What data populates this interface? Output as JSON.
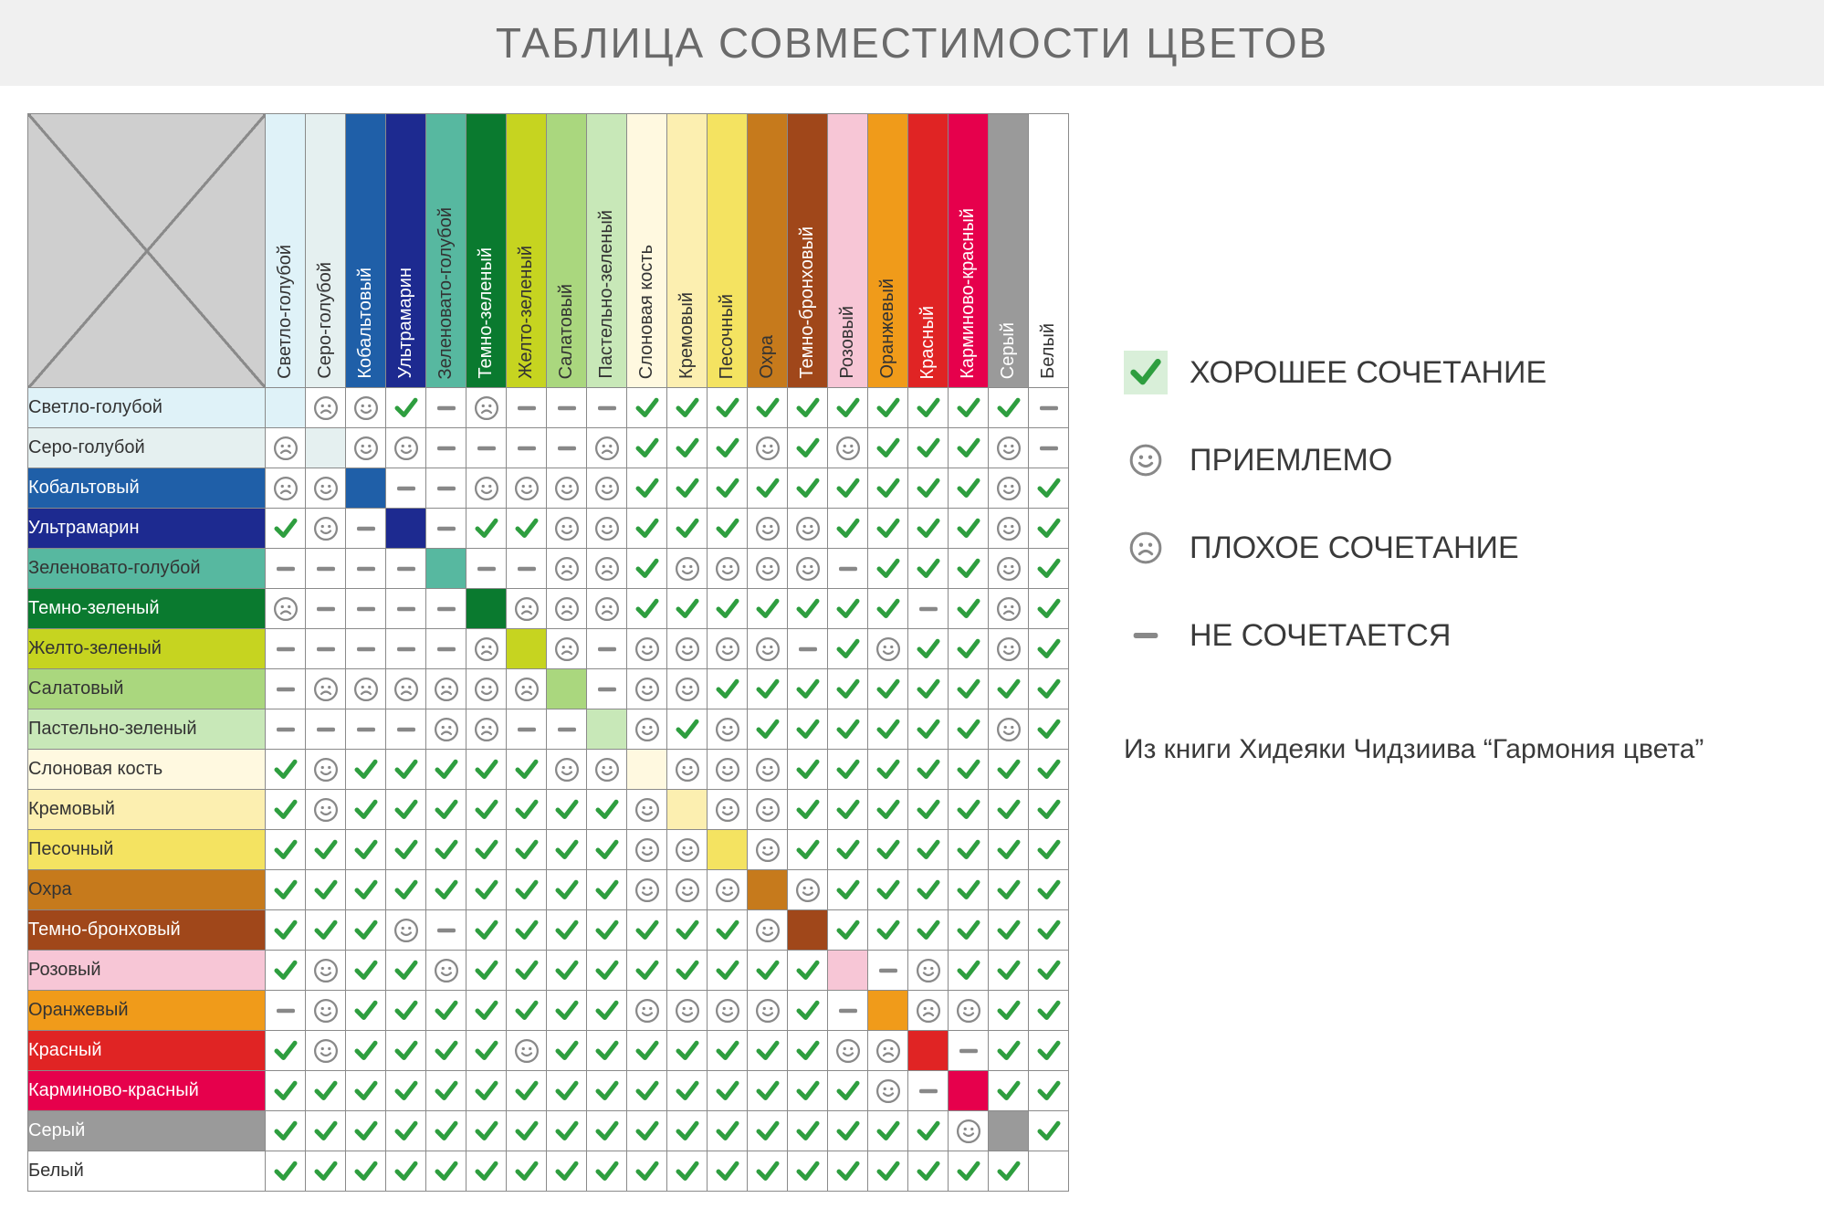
{
  "title": "ТАБЛИЦА СОВМЕСТИМОСТИ ЦВЕТОВ",
  "symbols": {
    "check_color": "#2e9e3f",
    "face_stroke": "#888888",
    "dash_color": "#888888"
  },
  "legend": {
    "items": [
      {
        "sym": "c",
        "label": "ХОРОШЕЕ СОЧЕТАНИЕ"
      },
      {
        "sym": "s",
        "label": "ПРИЕМЛЕМО"
      },
      {
        "sym": "f",
        "label": "ПЛОХОЕ СОЧЕТАНИЕ"
      },
      {
        "sym": "d",
        "label": "НЕ СОЧЕТАЕТСЯ"
      }
    ],
    "note": "Из книги Хидеяки Чидзиива “Гармония цвета”"
  },
  "colors": [
    {
      "name": "Светло-голубой",
      "bg": "#dff2f8",
      "fg": "#333333"
    },
    {
      "name": "Серо-голубой",
      "bg": "#e5f0f0",
      "fg": "#333333"
    },
    {
      "name": "Кобальтовый",
      "bg": "#1f5fa8",
      "fg": "#ffffff"
    },
    {
      "name": "Ультрамарин",
      "bg": "#1d2a90",
      "fg": "#ffffff"
    },
    {
      "name": "Зеленовато-голубой",
      "bg": "#57b8a0",
      "fg": "#333333"
    },
    {
      "name": "Темно-зеленый",
      "bg": "#0a7a2f",
      "fg": "#ffffff"
    },
    {
      "name": "Желто-зеленый",
      "bg": "#c6d420",
      "fg": "#333333"
    },
    {
      "name": "Салатовый",
      "bg": "#aad77e",
      "fg": "#333333"
    },
    {
      "name": "Пастельно-зеленый",
      "bg": "#c8e8b8",
      "fg": "#333333"
    },
    {
      "name": "Слоновая кость",
      "bg": "#fff9e0",
      "fg": "#333333"
    },
    {
      "name": "Кремовый",
      "bg": "#fcefb0",
      "fg": "#333333"
    },
    {
      "name": "Песочный",
      "bg": "#f4e361",
      "fg": "#333333"
    },
    {
      "name": "Охра",
      "bg": "#c67a1c",
      "fg": "#333333"
    },
    {
      "name": "Темно-бронховый",
      "bg": "#a0471a",
      "fg": "#ffffff"
    },
    {
      "name": "Розовый",
      "bg": "#f7c6d6",
      "fg": "#333333"
    },
    {
      "name": "Оранжевый",
      "bg": "#f09b1a",
      "fg": "#333333"
    },
    {
      "name": "Красный",
      "bg": "#e02424",
      "fg": "#ffffff"
    },
    {
      "name": "Карминово-красный",
      "bg": "#e6004c",
      "fg": "#ffffff"
    },
    {
      "name": "Серый",
      "bg": "#9a9a9a",
      "fg": "#ffffff"
    },
    {
      "name": "Белый",
      "bg": "#ffffff",
      "fg": "#333333"
    }
  ],
  "matrix": [
    [
      ".",
      "f",
      "s",
      "c",
      "d",
      "f",
      "d",
      "d",
      "d",
      "c",
      "c",
      "c",
      "c",
      "c",
      "c",
      "c",
      "c",
      "c",
      "c",
      "d"
    ],
    [
      "f",
      ".",
      "s",
      "s",
      "d",
      "d",
      "d",
      "d",
      "f",
      "c",
      "c",
      "c",
      "s",
      "c",
      "s",
      "c",
      "c",
      "c",
      "s",
      "d"
    ],
    [
      "f",
      "s",
      ".",
      "d",
      "d",
      "s",
      "s",
      "s",
      "s",
      "c",
      "c",
      "c",
      "c",
      "c",
      "c",
      "c",
      "c",
      "c",
      "s",
      "c"
    ],
    [
      "c",
      "s",
      "d",
      ".",
      "d",
      "c",
      "c",
      "s",
      "s",
      "c",
      "c",
      "c",
      "s",
      "s",
      "c",
      "c",
      "c",
      "c",
      "s",
      "c"
    ],
    [
      "d",
      "d",
      "d",
      "d",
      ".",
      "d",
      "d",
      "f",
      "f",
      "c",
      "s",
      "s",
      "s",
      "s",
      "d",
      "c",
      "c",
      "c",
      "s",
      "c"
    ],
    [
      "f",
      "d",
      "d",
      "d",
      "d",
      ".",
      "f",
      "f",
      "f",
      "c",
      "c",
      "c",
      "c",
      "c",
      "c",
      "c",
      "d",
      "c",
      "f",
      "c"
    ],
    [
      "d",
      "d",
      "d",
      "d",
      "d",
      "f",
      ".",
      "f",
      "d",
      "s",
      "s",
      "s",
      "s",
      "d",
      "c",
      "s",
      "c",
      "c",
      "s",
      "c"
    ],
    [
      "d",
      "f",
      "f",
      "f",
      "f",
      "s",
      "f",
      ".",
      "d",
      "s",
      "s",
      "c",
      "c",
      "c",
      "c",
      "c",
      "c",
      "c",
      "c",
      "c"
    ],
    [
      "d",
      "d",
      "d",
      "d",
      "f",
      "f",
      "d",
      "d",
      ".",
      "s",
      "c",
      "s",
      "c",
      "c",
      "c",
      "c",
      "c",
      "c",
      "s",
      "c"
    ],
    [
      "c",
      "s",
      "c",
      "c",
      "c",
      "c",
      "c",
      "s",
      "s",
      ".",
      "s",
      "s",
      "s",
      "c",
      "c",
      "c",
      "c",
      "c",
      "c",
      "c"
    ],
    [
      "c",
      "s",
      "c",
      "c",
      "c",
      "c",
      "c",
      "c",
      "c",
      "s",
      ".",
      "s",
      "s",
      "c",
      "c",
      "c",
      "c",
      "c",
      "c",
      "c"
    ],
    [
      "c",
      "c",
      "c",
      "c",
      "c",
      "c",
      "c",
      "c",
      "c",
      "s",
      "s",
      ".",
      "s",
      "c",
      "c",
      "c",
      "c",
      "c",
      "c",
      "c"
    ],
    [
      "c",
      "c",
      "c",
      "c",
      "c",
      "c",
      "c",
      "c",
      "c",
      "s",
      "s",
      "s",
      ".",
      "s",
      "c",
      "c",
      "c",
      "c",
      "c",
      "c"
    ],
    [
      "c",
      "c",
      "c",
      "s",
      "d",
      "c",
      "c",
      "c",
      "c",
      "c",
      "c",
      "c",
      "s",
      ".",
      "c",
      "c",
      "c",
      "c",
      "c",
      "c"
    ],
    [
      "c",
      "s",
      "c",
      "c",
      "s",
      "c",
      "c",
      "c",
      "c",
      "c",
      "c",
      "c",
      "c",
      "c",
      ".",
      "d",
      "s",
      "c",
      "c",
      "c"
    ],
    [
      "d",
      "s",
      "c",
      "c",
      "c",
      "c",
      "c",
      "c",
      "c",
      "s",
      "s",
      "s",
      "s",
      "c",
      "d",
      ".",
      "f",
      "s",
      "c",
      "c"
    ],
    [
      "c",
      "s",
      "c",
      "c",
      "c",
      "c",
      "s",
      "c",
      "c",
      "c",
      "c",
      "c",
      "c",
      "c",
      "s",
      "f",
      ".",
      "d",
      "c",
      "c"
    ],
    [
      "c",
      "c",
      "c",
      "c",
      "c",
      "c",
      "c",
      "c",
      "c",
      "c",
      "c",
      "c",
      "c",
      "c",
      "c",
      "s",
      "d",
      ".",
      "c",
      "c"
    ],
    [
      "c",
      "c",
      "c",
      "c",
      "c",
      "c",
      "c",
      "c",
      "c",
      "c",
      "c",
      "c",
      "c",
      "c",
      "c",
      "c",
      "c",
      "s",
      ".",
      "c"
    ],
    [
      "c",
      "c",
      "c",
      "c",
      "c",
      "c",
      "c",
      "c",
      "c",
      "c",
      "c",
      "c",
      "c",
      "c",
      "c",
      "c",
      "c",
      "c",
      "c",
      "."
    ]
  ]
}
